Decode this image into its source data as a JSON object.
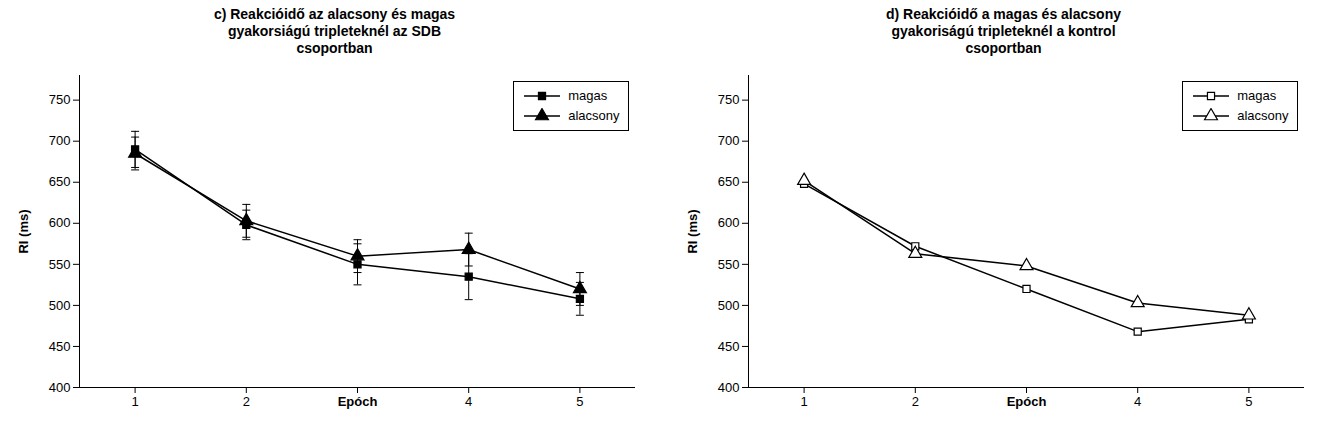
{
  "chart_data": [
    {
      "type": "line",
      "title": "c) Reakcióidő az alacsony és magas\ngyakorsiágú tripleteknél az SDB\ncsoportban",
      "x": [
        1,
        2,
        3,
        4,
        5
      ],
      "xlim": [
        0.5,
        5.5
      ],
      "xticks": [
        1,
        2,
        {
          "value": 3,
          "label": "Epóch"
        },
        4,
        5
      ],
      "ylabel": "RI (ms)",
      "ylim": [
        400,
        780
      ],
      "yticks": [
        400,
        450,
        500,
        550,
        600,
        650,
        700,
        750
      ],
      "grid": false,
      "legend": "upper right",
      "series": [
        {
          "name": "magas",
          "color": "#000000",
          "marker": "square",
          "values": [
            690,
            598,
            550,
            535,
            508
          ],
          "errors": [
            22,
            18,
            25,
            28,
            20
          ]
        },
        {
          "name": "alacsony",
          "color": "#000000",
          "marker": "triangle",
          "values": [
            685,
            603,
            560,
            568,
            520
          ],
          "errors": [
            20,
            20,
            20,
            20,
            20
          ]
        }
      ]
    },
    {
      "type": "line",
      "title": "d) Reakcióidő a magas és alacsony\ngyakoriságú tripleteknél a kontrol\ncsoportban",
      "x": [
        1,
        2,
        3,
        4,
        5
      ],
      "xlim": [
        0.5,
        5.5
      ],
      "xticks": [
        1,
        2,
        {
          "value": 3,
          "label": "Epóch"
        },
        4,
        5
      ],
      "ylabel": "RI (ms)",
      "ylim": [
        400,
        780
      ],
      "yticks": [
        400,
        450,
        500,
        550,
        600,
        650,
        700,
        750
      ],
      "grid": false,
      "legend": "upper right",
      "series": [
        {
          "name": "magas",
          "color": "#000000",
          "marker": "square-open",
          "values": [
            648,
            572,
            520,
            468,
            483
          ]
        },
        {
          "name": "alacsony",
          "color": "#000000",
          "marker": "triangle-open",
          "values": [
            652,
            563,
            548,
            503,
            488
          ]
        }
      ]
    }
  ]
}
